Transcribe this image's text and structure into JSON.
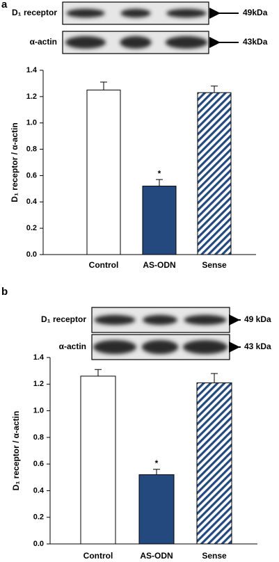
{
  "chart_data": [
    {
      "type": "bar",
      "panel": "a",
      "blots": [
        {
          "label": "D₁ receptor",
          "size": "49kDa"
        },
        {
          "label": "α-actin",
          "size": "43kDa"
        }
      ],
      "y_label": "D₁ receptor / α-actin",
      "categories": [
        "Control",
        "AS-ODN",
        "Sense"
      ],
      "values": [
        1.25,
        0.52,
        1.23
      ],
      "errors": [
        0.06,
        0.05,
        0.05
      ],
      "markers": [
        null,
        "*",
        null
      ],
      "colors": [
        "#ffffff",
        "#24497f",
        "#24497f"
      ],
      "patterns": [
        null,
        null,
        "diagonal"
      ],
      "ylim": [
        0,
        1.4
      ],
      "yticks": [
        {
          "value": 0,
          "label": "0.0"
        },
        0.2,
        0.4,
        0.6,
        0.8,
        {
          "value": 1,
          "label": "1.0"
        },
        1.2,
        1.4
      ]
    },
    {
      "type": "bar",
      "panel": "b",
      "blots": [
        {
          "label": "D₁ receptor",
          "size": "49 kDa"
        },
        {
          "label": "α-actin",
          "size": "43 kDa"
        }
      ],
      "y_label": "D₁ receptor / α-actin",
      "categories": [
        "Control",
        "AS-ODN",
        "Sense"
      ],
      "values": [
        1.26,
        0.52,
        1.21
      ],
      "errors": [
        0.05,
        0.04,
        0.07
      ],
      "markers": [
        null,
        "*",
        null
      ],
      "colors": [
        "#ffffff",
        "#24497f",
        "#24497f"
      ],
      "patterns": [
        null,
        null,
        "diagonal"
      ],
      "ylim": [
        0,
        1.4
      ],
      "yticks": [
        {
          "value": 0,
          "label": "0.0"
        },
        0.2,
        0.4,
        0.6,
        0.8,
        {
          "value": 1,
          "label": "1.0"
        },
        1.2,
        1.4
      ]
    }
  ]
}
